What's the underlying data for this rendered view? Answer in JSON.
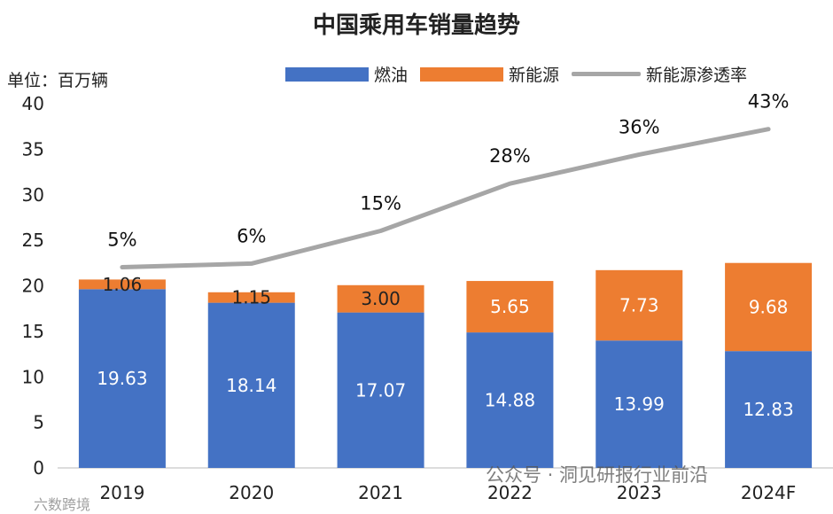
{
  "chart_data": {
    "type": "bar",
    "title": "中国乘用车销量趋势",
    "unit_label": "单位：百万辆",
    "categories": [
      "2019",
      "2020",
      "2021",
      "2022",
      "2023",
      "2024F"
    ],
    "series": [
      {
        "name": "燃油",
        "values": [
          19.63,
          18.14,
          17.07,
          14.88,
          13.99,
          12.83
        ],
        "color": "#4472c4"
      },
      {
        "name": "新能源",
        "values": [
          1.06,
          1.15,
          3.0,
          5.65,
          7.73,
          9.68
        ],
        "color": "#ed7d31"
      }
    ],
    "line_series": {
      "name": "新能源渗透率",
      "labels": [
        "5%",
        "6%",
        "15%",
        "28%",
        "36%",
        "43%"
      ],
      "values": [
        5,
        6,
        15,
        28,
        36,
        43
      ],
      "color": "#a6a6a6"
    },
    "value_labels": {
      "fuel": [
        "19.63",
        "18.14",
        "17.07",
        "14.88",
        "13.99",
        "12.83"
      ],
      "nev": [
        "1.06",
        "1.15",
        "3.00",
        "5.65",
        "7.73",
        "9.68"
      ]
    },
    "yticks": [
      "0",
      "5",
      "10",
      "15",
      "20",
      "25",
      "30",
      "35",
      "40"
    ],
    "ylim": [
      0,
      40
    ],
    "stacked": true
  },
  "watermark": {
    "text": "公众号 · 洞见研报行业前沿",
    "corner": "六数跨境"
  }
}
